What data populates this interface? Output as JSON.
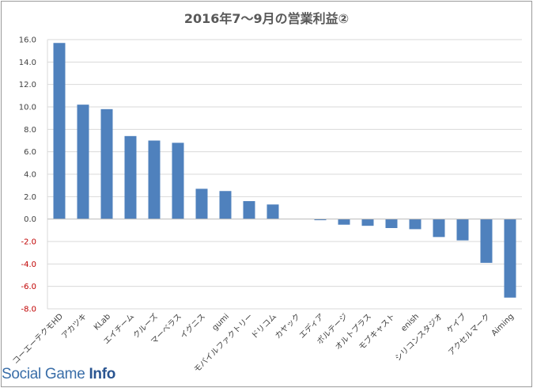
{
  "chart_data": {
    "type": "bar",
    "title": "2016年7～9月の営業利益②",
    "xlabel": "",
    "ylabel": "",
    "ylim": [
      -8,
      16
    ],
    "yticks": [
      "16.0",
      "14.0",
      "12.0",
      "10.0",
      "8.0",
      "6.0",
      "4.0",
      "2.0",
      "0.0",
      "-2.0",
      "-4.0",
      "-6.0",
      "-8.0"
    ],
    "grid": true,
    "legend": "none",
    "bar_color": "#4f81bd",
    "negative_tick_color": "#c00000",
    "categories": [
      "コーエーテクモHD",
      "アカツキ",
      "KLab",
      "エイチーム",
      "クルーズ",
      "マーベラス",
      "イグニス",
      "gumi",
      "モバイルファクトリー",
      "ドリコム",
      "カヤック",
      "エディア",
      "ボルテージ",
      "オルトプラス",
      "モブキャスト",
      "enish",
      "シリコンスタジオ",
      "ケイブ",
      "アクセルマーク",
      "Aiming"
    ],
    "values": [
      15.7,
      10.2,
      9.8,
      7.4,
      7.0,
      6.8,
      2.7,
      2.5,
      1.6,
      1.3,
      0.0,
      -0.1,
      -0.5,
      -0.6,
      -0.8,
      -0.9,
      -1.6,
      -1.9,
      -3.9,
      -7.0
    ]
  },
  "watermark": {
    "part1": "Social Game ",
    "part2": "Info"
  }
}
